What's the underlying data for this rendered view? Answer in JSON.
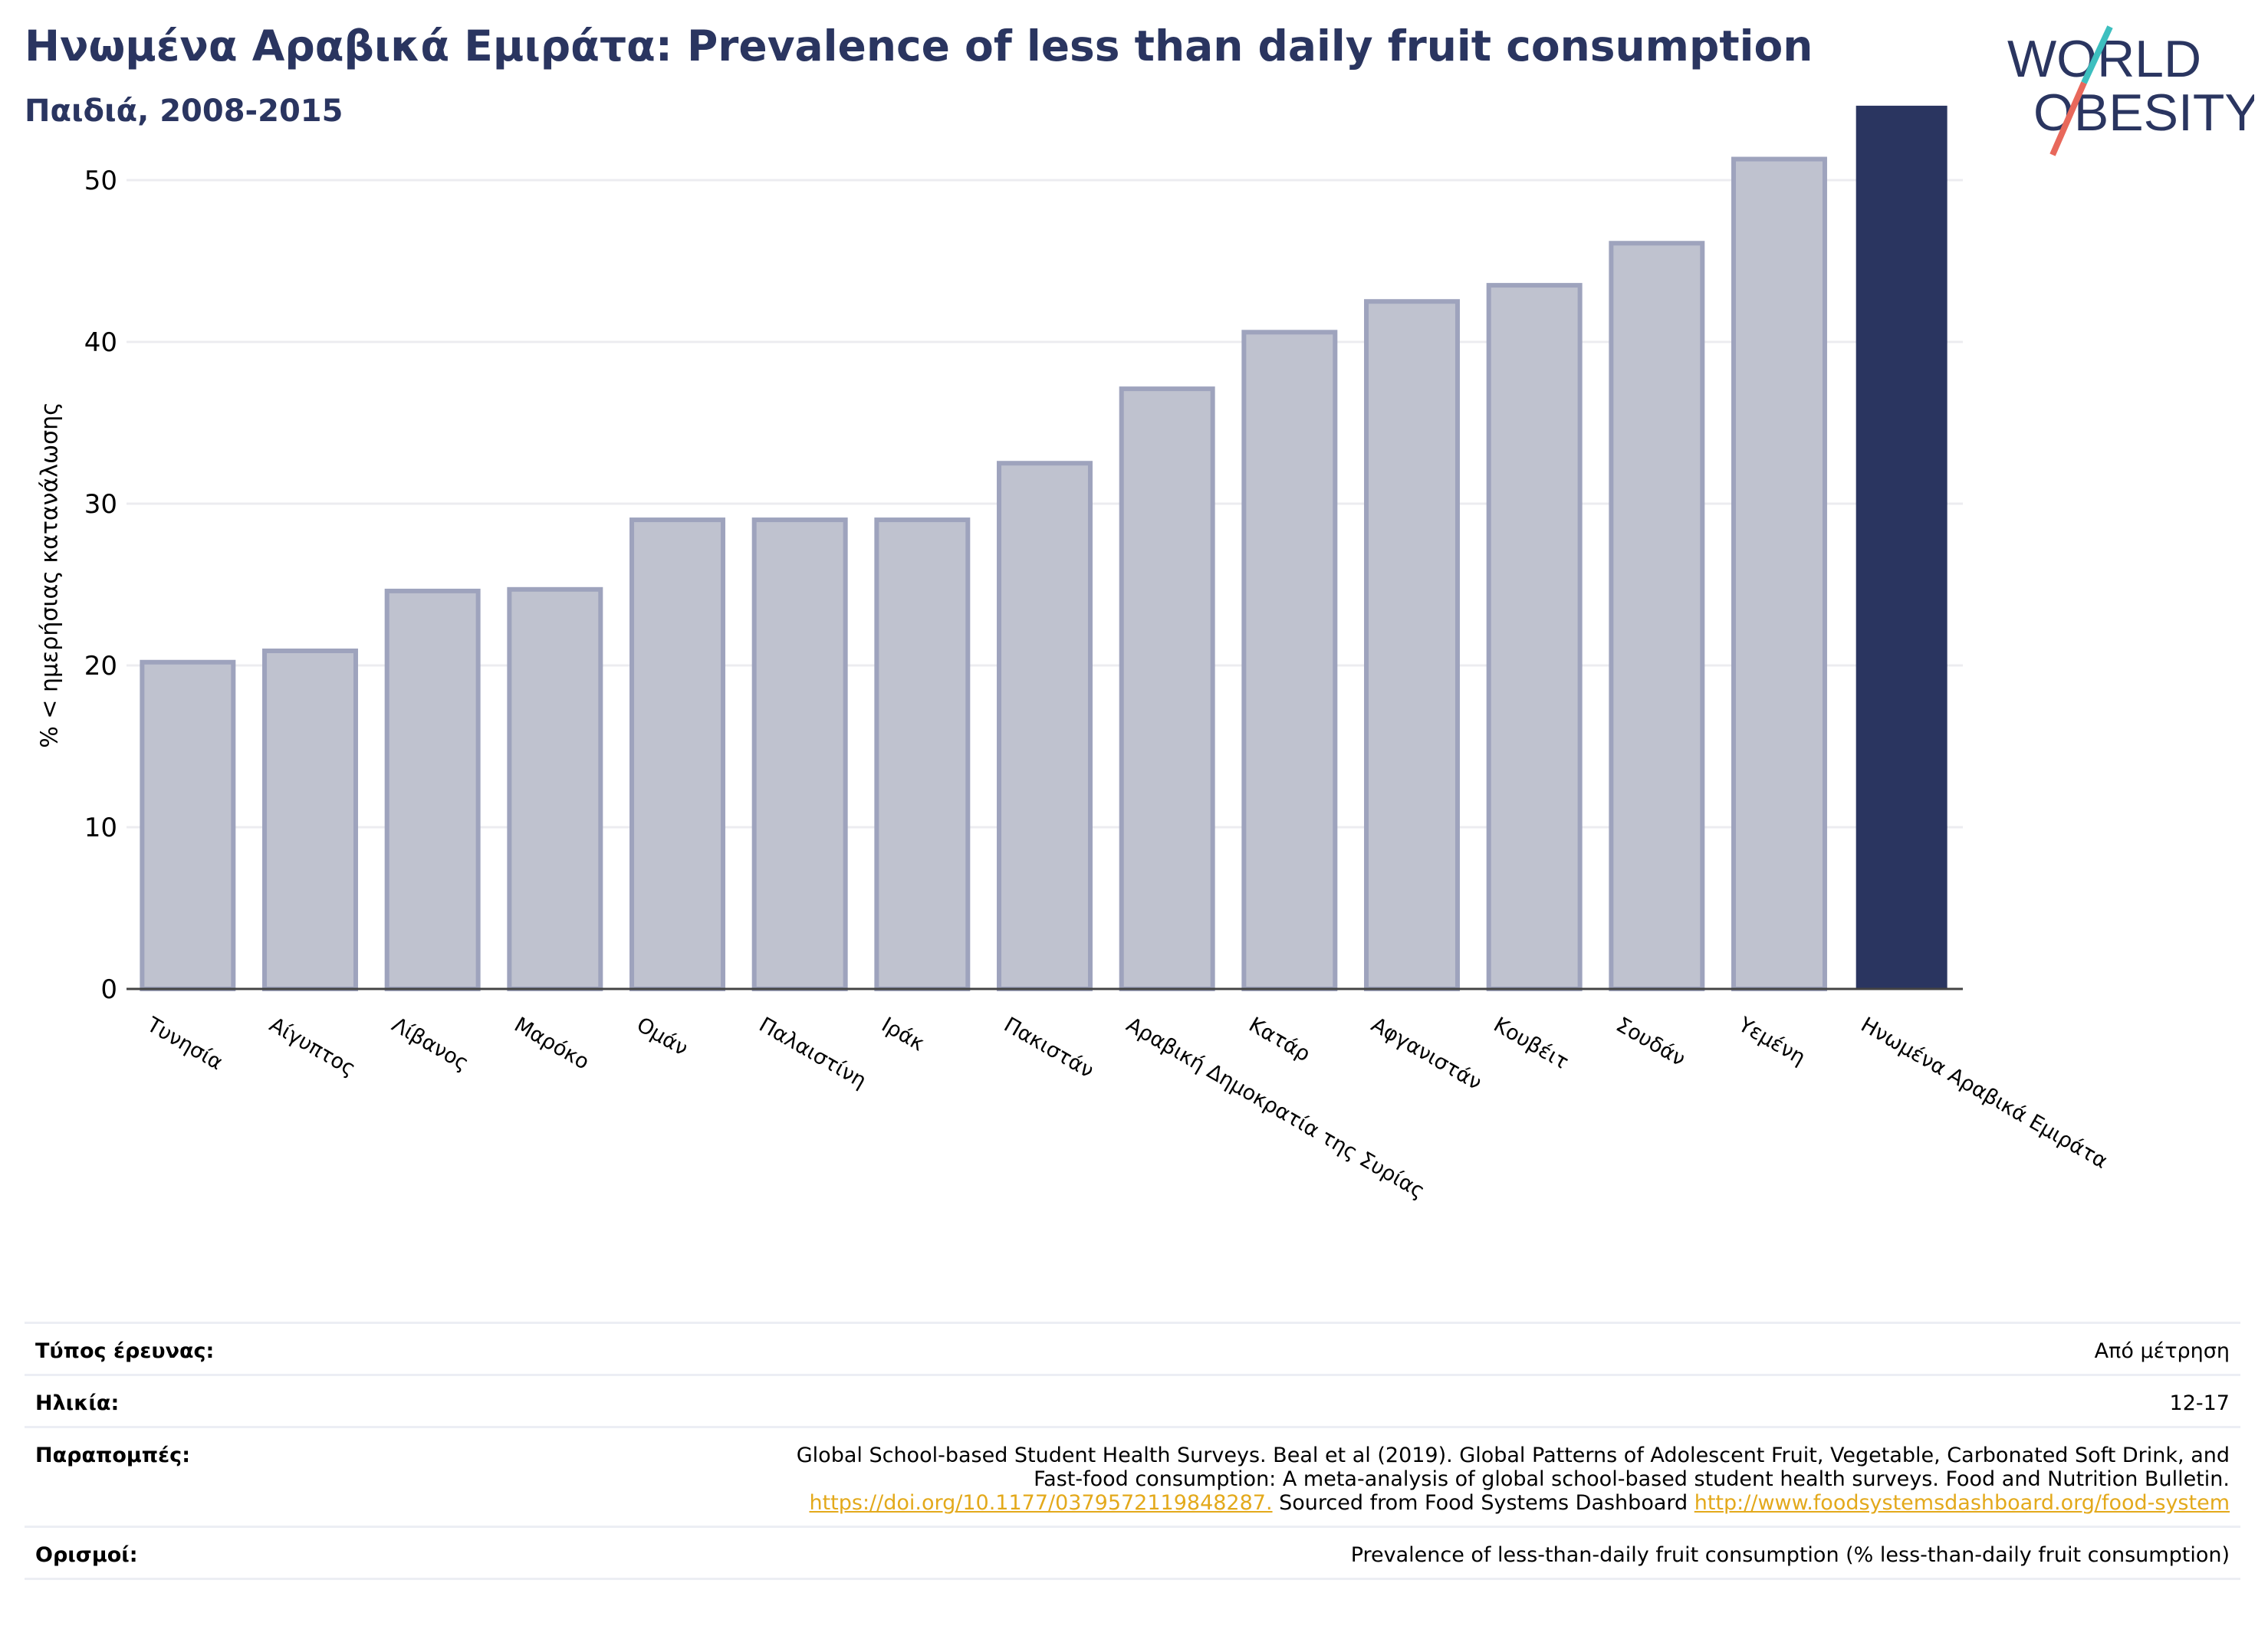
{
  "header": {
    "title": "Ηνωμένα Αραβικά Εμιράτα: Prevalence of less than daily fruit consumption",
    "subtitle": "Παιδιά, 2008-2015"
  },
  "logo": {
    "line1": "WORLD",
    "line2": "OBESITY",
    "colors": {
      "text": "#2a3560",
      "slash_top": "#3dbfbf",
      "slash_bottom": "#e8685b"
    }
  },
  "chart_data": {
    "type": "bar",
    "title": "Ηνωμένα Αραβικά Εμιράτα: Prevalence of less than daily fruit consumption",
    "subtitle": "Παιδιά, 2008-2015",
    "ylabel": "% < ημερήσιας κατανάλωσης",
    "xlabel": "",
    "ylim": [
      0,
      54.5
    ],
    "yticks": [
      0,
      10,
      20,
      30,
      40,
      50
    ],
    "grid": true,
    "categories": [
      "Τυνησία",
      "Αίγυπτος",
      "Λίβανος",
      "Μαρόκο",
      "Ομάν",
      "Παλαιστίνη",
      "Ιράκ",
      "Πακιστάν",
      "Αραβική Δημοκρατία της Συρίας",
      "Κατάρ",
      "Αφγανιστάν",
      "Κουβέιτ",
      "Σουδάν",
      "Υεμένη",
      "Ηνωμένα Αραβικά Εμιράτα"
    ],
    "values": [
      20.2,
      20.9,
      24.6,
      24.7,
      29.0,
      29.0,
      29.0,
      32.5,
      37.1,
      40.6,
      42.5,
      43.5,
      46.1,
      51.3,
      54.6
    ],
    "highlight_index": 14,
    "colors": {
      "bar": "#bfc2cf",
      "bar_edge": "#9ea3bd",
      "highlight": "#2a3560",
      "grid": "#ececf0",
      "axis": "#444444"
    }
  },
  "metadata": {
    "rows": [
      {
        "label": "Τύπος έρευνας:",
        "value": "Από μέτρηση"
      },
      {
        "label": "Ηλικία:",
        "value": "12-17"
      },
      {
        "label": "Παραπομπές:",
        "line1": "Global School-based Student Health Surveys. Beal et al (2019). Global Patterns of Adolescent Fruit, Vegetable, Carbonated Soft Drink, and",
        "line2": "Fast-food consumption: A meta-analysis of global school-based student health surveys. Food and Nutrition Bulletin.",
        "doi": "https://doi.org/10.1177/0379572119848287.",
        "mid": " Sourced from Food Systems Dashboard ",
        "url": "http://www.foodsystemsdashboard.org/food-system"
      },
      {
        "label": "Ορισμοί:",
        "value": "Prevalence of less-than-daily fruit consumption (% less-than-daily fruit consumption)"
      }
    ]
  }
}
